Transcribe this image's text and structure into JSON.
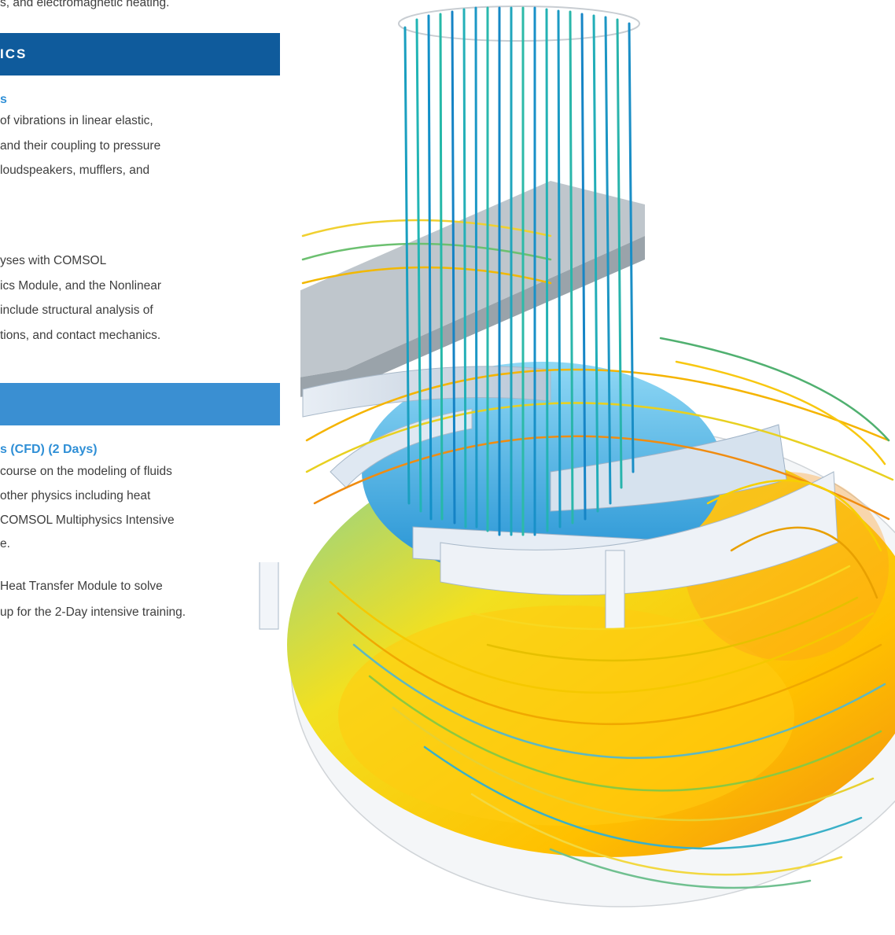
{
  "page": {
    "intro_tail": "s, and electromagnetic heating."
  },
  "section_mechanics": {
    "band_title": "ICS",
    "sub1_title": "s",
    "sub1_lines": [
      "of vibrations in linear elastic,",
      "and their coupling to pressure",
      "loudspeakers, mufflers, and"
    ],
    "sub2_lines": [
      "yses with COMSOL",
      "ics Module, and the Nonlinear",
      "include structural analysis of",
      "tions, and contact mechanics."
    ]
  },
  "section_fluids": {
    "band_title": "",
    "sub1_title": "s (CFD) (2 Days)",
    "sub1_lines": [
      "course on the modeling of fluids",
      "other physics including heat",
      "COMSOL Multiphysics Intensive",
      "e."
    ],
    "sub2_lines": [
      "Heat Transfer Module to solve",
      "up for the 2-Day intensive training."
    ]
  },
  "colors": {
    "band_dark": "#0f5b9c",
    "band_light": "#3a8fd2",
    "subheading": "#2f8fd6"
  },
  "illustration": {
    "icon": "cfd-mixer-streamlines-render"
  }
}
